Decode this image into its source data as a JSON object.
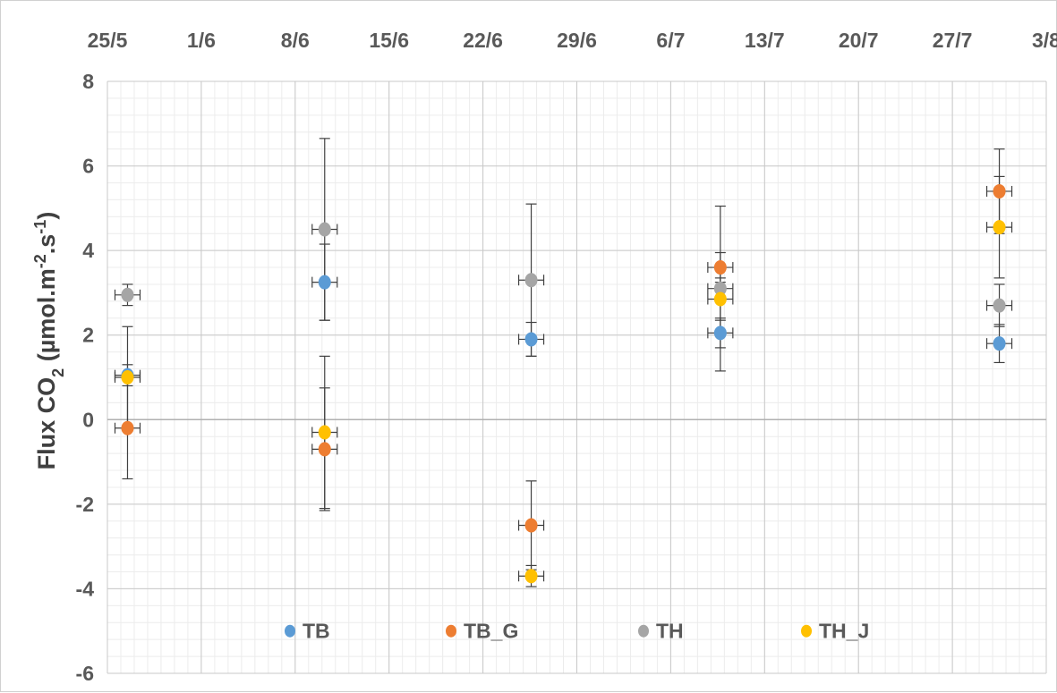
{
  "chart_data": {
    "type": "scatter",
    "xlabel": "",
    "ylabel": {
      "main": "Flux CO",
      "sub": "2",
      "unit_open": " (µmol.m",
      "sup1": "-2",
      "mid": ".s",
      "sup2": "-1",
      "close": ")"
    },
    "x_ticks": [
      "25/5",
      "1/6",
      "8/6",
      "15/6",
      "22/6",
      "29/6",
      "6/7",
      "13/7",
      "20/7",
      "27/7",
      "3/8"
    ],
    "x_tick_days": [
      0,
      7,
      14,
      21,
      28,
      35,
      42,
      49,
      56,
      63,
      70
    ],
    "x_axis_position": "top",
    "ylim": [
      -6,
      8
    ],
    "y_ticks": [
      8,
      6,
      4,
      2,
      0,
      -2,
      -4,
      -6
    ],
    "grid": true,
    "legend_position": "bottom-inside",
    "series": [
      {
        "name": "TB",
        "color": "#5B9BD5",
        "x": [
          "26/5",
          "10/6",
          "25/6",
          "10/7",
          "30/7"
        ],
        "x_days": [
          1.5,
          16.2,
          31.6,
          45.7,
          66.5
        ],
        "y": [
          1.05,
          3.25,
          1.9,
          2.05,
          1.8
        ],
        "yerr": [
          0.25,
          0.9,
          0.4,
          0.35,
          0.45
        ]
      },
      {
        "name": "TB_G",
        "color": "#ED7D31",
        "x": [
          "26/5",
          "10/6",
          "25/6",
          "10/7",
          "30/7"
        ],
        "x_days": [
          1.5,
          16.2,
          31.6,
          45.7,
          66.5
        ],
        "y": [
          -0.2,
          -0.7,
          -2.5,
          3.6,
          5.4
        ],
        "yerr": [
          1.2,
          1.45,
          1.05,
          0.35,
          1.0
        ]
      },
      {
        "name": "TH",
        "color": "#A5A5A5",
        "x": [
          "26/5",
          "10/6",
          "25/6",
          "10/7",
          "30/7"
        ],
        "x_days": [
          1.5,
          16.2,
          31.6,
          45.7,
          66.5
        ],
        "y": [
          2.95,
          4.5,
          3.3,
          3.1,
          2.7
        ],
        "yerr": [
          0.25,
          2.15,
          1.8,
          1.95,
          0.5
        ]
      },
      {
        "name": "TH_J",
        "color": "#FFC000",
        "x": [
          "26/5",
          "10/6",
          "25/6",
          "10/7",
          "30/7"
        ],
        "x_days": [
          1.5,
          16.2,
          31.6,
          45.7,
          66.5
        ],
        "y": [
          1.0,
          -0.3,
          -3.7,
          2.85,
          4.55
        ],
        "yerr": [
          1.2,
          1.8,
          0.25,
          0.5,
          1.2
        ]
      }
    ]
  }
}
